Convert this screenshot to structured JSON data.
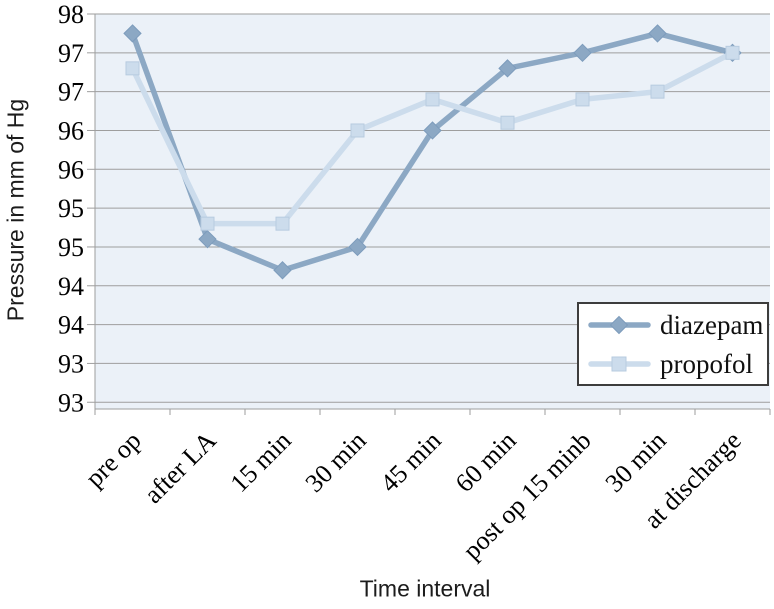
{
  "chart_data": {
    "type": "line",
    "title": "",
    "xlabel": "Time interval",
    "ylabel": "Pressure in mm of Hg",
    "categories": [
      "pre op",
      "after LA",
      "15 min",
      "30 min",
      "45 min",
      "60 min",
      "post op 15 minb",
      "30 min",
      "at discharge"
    ],
    "series": [
      {
        "name": "diazepam",
        "marker": "diamond",
        "color": "#8ca8c4",
        "marker_edge_color": "#7d9cbc",
        "values": [
          97.75,
          95.1,
          94.7,
          95.0,
          96.5,
          97.3,
          97.5,
          97.75,
          97.5
        ]
      },
      {
        "name": "propofol",
        "marker": "square",
        "color": "#ccdcec",
        "marker_edge_color": "#b7cbdf",
        "values": [
          97.3,
          95.3,
          95.3,
          96.5,
          96.9,
          96.6,
          96.9,
          97.0,
          97.5
        ]
      }
    ],
    "y_axis": {
      "min": 93,
      "max": 98,
      "step": 0.5,
      "displayed_tick_labels": [
        "98",
        "97",
        "97",
        "96",
        "96",
        "95",
        "95",
        "94",
        "94",
        "93",
        "93"
      ]
    },
    "x_axis": {
      "title": "Time interval"
    },
    "legend": {
      "position": "middle-right",
      "entries": [
        "diazepam",
        "propofol"
      ]
    },
    "grid": true,
    "colors": {
      "plot_background": "#ebf1f8",
      "gridline": "#9e9e9e",
      "axis_line": "#9e9e9e",
      "tick_label": "#000000",
      "legend_border": "#3d3d3d",
      "legend_background": "#ffffff"
    }
  }
}
